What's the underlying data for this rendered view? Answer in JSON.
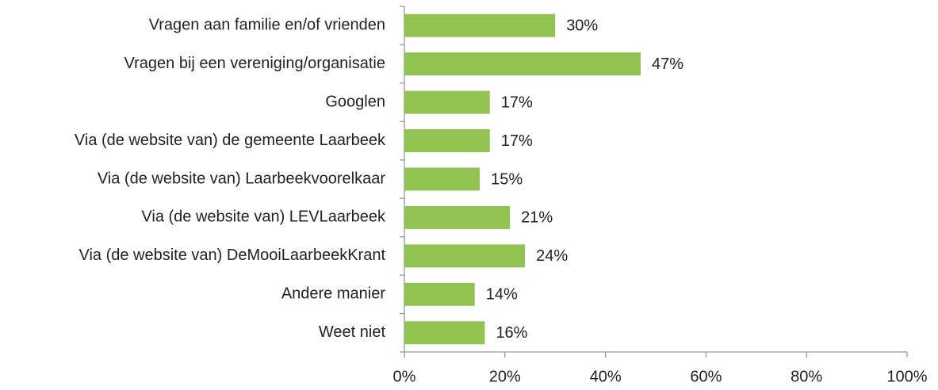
{
  "chart_data": {
    "type": "bar",
    "orientation": "horizontal",
    "categories": [
      "Vragen aan familie en/of vrienden",
      "Vragen bij een vereniging/organisatie",
      "Googlen",
      "Via (de website van) de gemeente Laarbeek",
      "Via (de website van) Laarbeekvoorelkaar",
      "Via (de website van) LEVLaarbeek",
      "Via (de website van) DeMooiLaarbeekKrant",
      "Andere manier",
      "Weet niet"
    ],
    "values": [
      30,
      47,
      17,
      17,
      15,
      21,
      24,
      14,
      16
    ],
    "value_labels": [
      "30%",
      "47%",
      "17%",
      "17%",
      "15%",
      "21%",
      "24%",
      "14%",
      "16%"
    ],
    "color": "#92c352",
    "xlim": [
      0,
      100
    ],
    "xticks": [
      {
        "value": 0,
        "label": "0%"
      },
      {
        "value": 20,
        "label": "20%"
      },
      {
        "value": 40,
        "label": "40%"
      },
      {
        "value": 60,
        "label": "60%"
      },
      {
        "value": 80,
        "label": "80%"
      },
      {
        "value": 100,
        "label": "100%"
      }
    ],
    "grid": false
  }
}
